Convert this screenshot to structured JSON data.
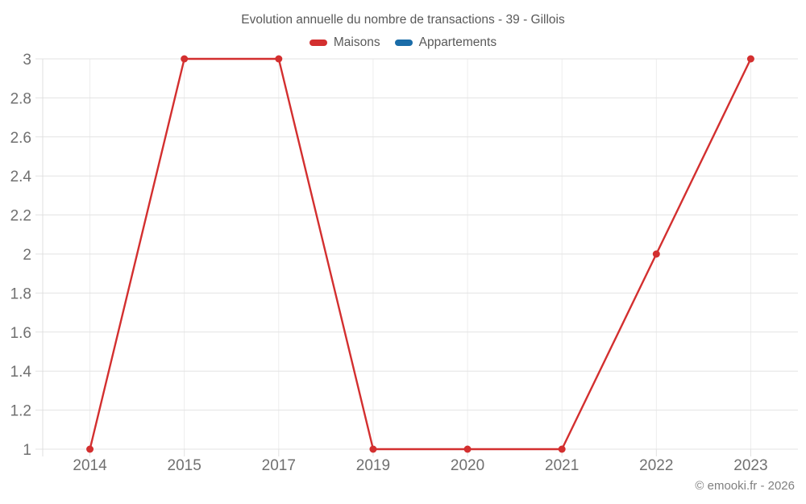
{
  "chart_data": {
    "type": "line",
    "title": "Evolution annuelle du nombre de transactions - 39 - Gillois",
    "categories": [
      "2014",
      "2015",
      "2017",
      "2019",
      "2020",
      "2021",
      "2022",
      "2023"
    ],
    "series": [
      {
        "name": "Maisons",
        "color": "#d32f2f",
        "values": [
          1,
          3,
          3,
          1,
          1,
          1,
          2,
          3
        ]
      },
      {
        "name": "Appartements",
        "color": "#1a6ca8",
        "values": []
      }
    ],
    "xlabel": "",
    "ylabel": "",
    "ylim": [
      1,
      3
    ],
    "ytick_step": 0.2,
    "grid": true,
    "legend_position": "top"
  },
  "footer": {
    "copyright": "© emooki.fr - 2026"
  }
}
